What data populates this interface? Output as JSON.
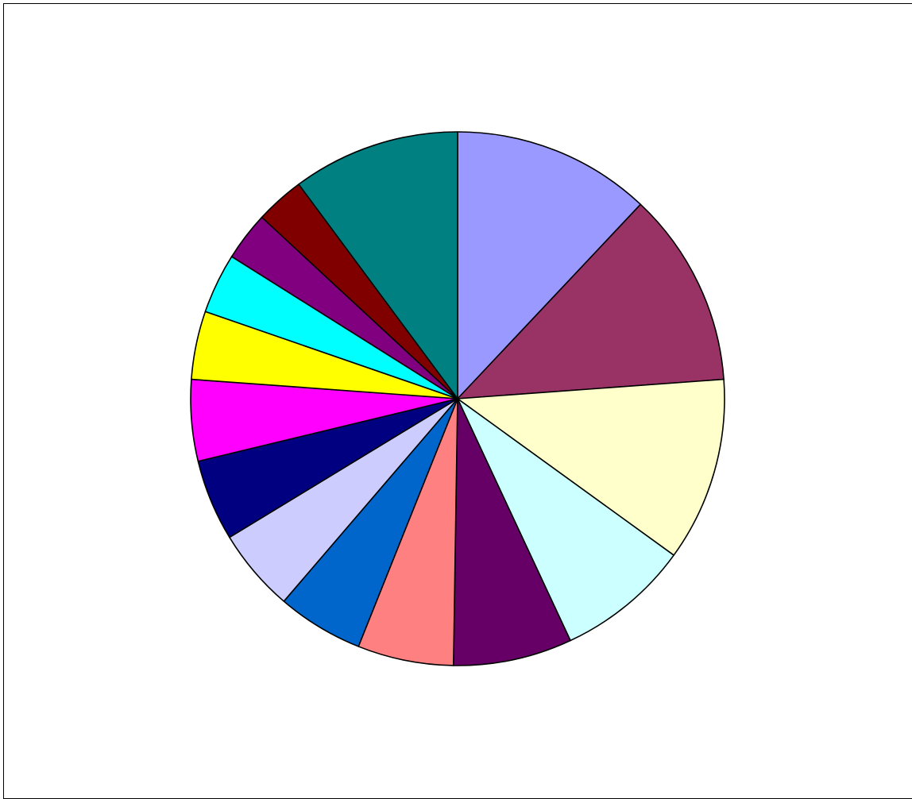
{
  "chart_data": {
    "type": "pie",
    "title": "",
    "start_angle_deg": 0,
    "direction": "clockwise",
    "legend": "none",
    "slices": [
      {
        "value": 12.2,
        "color": "#9999ff"
      },
      {
        "value": 12.0,
        "color": "#993366"
      },
      {
        "value": 11.3,
        "color": "#ffffcc"
      },
      {
        "value": 8.2,
        "color": "#ccffff"
      },
      {
        "value": 7.3,
        "color": "#660066"
      },
      {
        "value": 5.9,
        "color": "#ff8080"
      },
      {
        "value": 5.3,
        "color": "#0066cc"
      },
      {
        "value": 5.1,
        "color": "#ccccff"
      },
      {
        "value": 5.0,
        "color": "#000080"
      },
      {
        "value": 5.0,
        "color": "#ff00ff"
      },
      {
        "value": 4.2,
        "color": "#ffff00"
      },
      {
        "value": 3.7,
        "color": "#00ffff"
      },
      {
        "value": 3.0,
        "color": "#800080"
      },
      {
        "value": 3.0,
        "color": "#800000"
      },
      {
        "value": 10.3,
        "color": "#008080"
      }
    ]
  }
}
